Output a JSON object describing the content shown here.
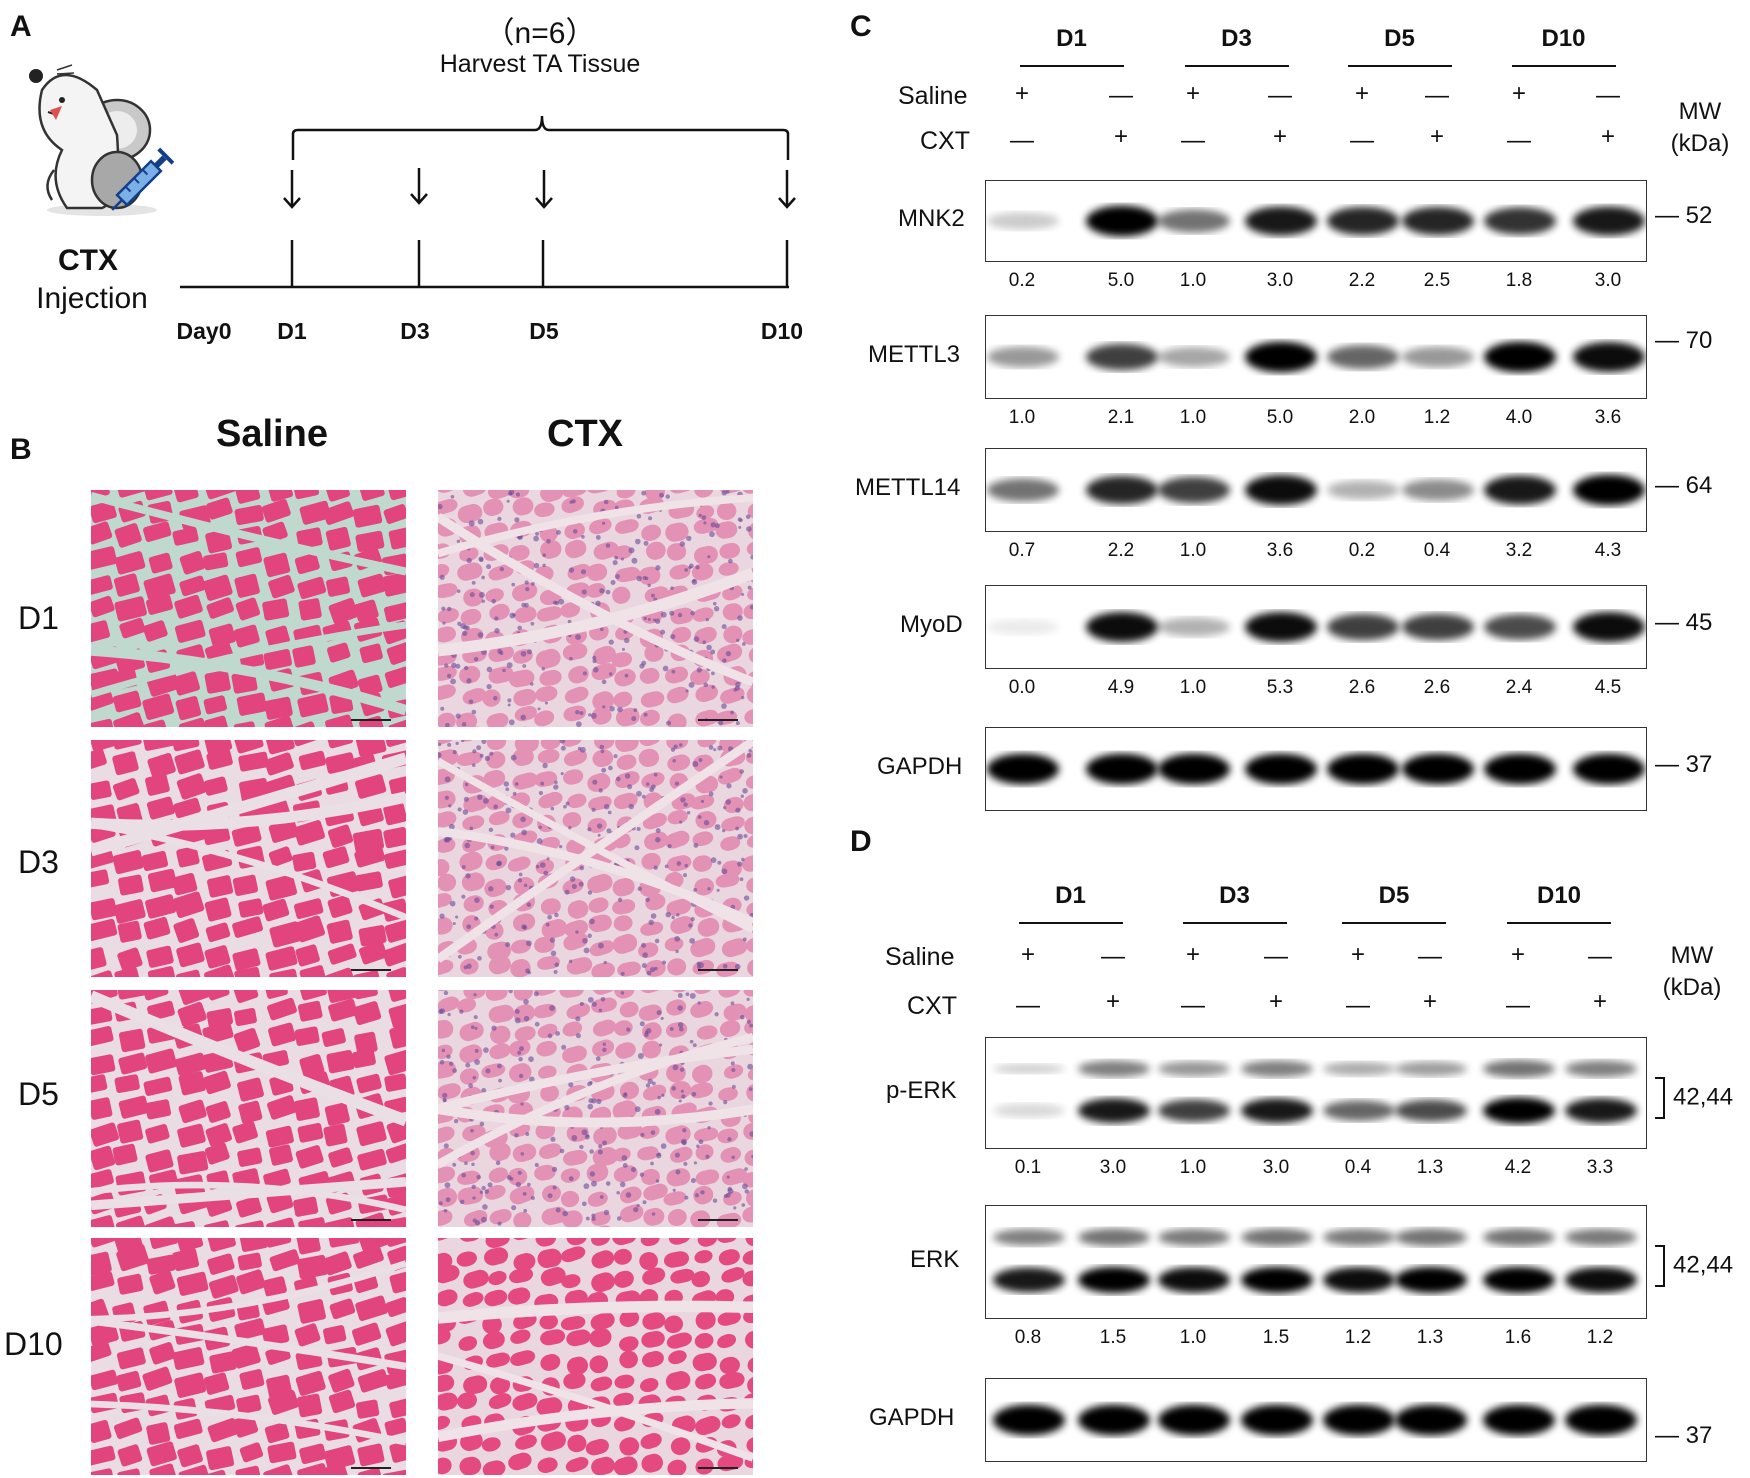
{
  "panelA": {
    "label": "A",
    "n_text": "（n=6）",
    "harvest_text": "Harvest TA Tissue",
    "ctx_text": "CTX",
    "injection_text": "Injection",
    "timeline_labels": [
      "Day0",
      "D1",
      "D3",
      "D5",
      "D10"
    ]
  },
  "panelB": {
    "label": "B",
    "col_headers": [
      "Saline",
      "CTX"
    ],
    "row_labels": [
      "D1",
      "D3",
      "D5",
      "D10"
    ]
  },
  "panelC": {
    "label": "C",
    "days": [
      "D1",
      "D3",
      "D5",
      "D10"
    ],
    "row_saline_label": "Saline",
    "row_cxt_label": "CXT",
    "saline_marks": [
      "+",
      "—",
      "+",
      "—",
      "+",
      "—",
      "+",
      "—"
    ],
    "cxt_marks": [
      "—",
      "+",
      "—",
      "+",
      "—",
      "+",
      "—",
      "+"
    ],
    "mw_label": "MW",
    "kda_label": "(kDa)",
    "blots": [
      {
        "name": "MNK2",
        "mw": "— 52",
        "values": [
          "0.2",
          "5.0",
          "1.0",
          "3.0",
          "2.2",
          "2.5",
          "1.8",
          "3.0"
        ],
        "intensity": [
          0.2,
          1.0,
          0.55,
          0.9,
          0.85,
          0.85,
          0.8,
          0.9
        ]
      },
      {
        "name": "METTL3",
        "mw": "— 70",
        "values": [
          "1.0",
          "2.1",
          "1.0",
          "5.0",
          "2.0",
          "1.2",
          "4.0",
          "3.6"
        ],
        "intensity": [
          0.4,
          0.75,
          0.35,
          1.0,
          0.6,
          0.4,
          1.0,
          0.95
        ]
      },
      {
        "name": "METTL14",
        "mw": "— 64",
        "values": [
          "0.7",
          "2.2",
          "1.0",
          "3.6",
          "0.2",
          "0.4",
          "3.2",
          "4.3"
        ],
        "intensity": [
          0.55,
          0.85,
          0.75,
          0.95,
          0.3,
          0.45,
          0.9,
          1.0
        ]
      },
      {
        "name": "MyoD",
        "mw": "— 45",
        "values": [
          "0.0",
          "4.9",
          "1.0",
          "5.3",
          "2.6",
          "2.6",
          "2.4",
          "4.5"
        ],
        "intensity": [
          0.08,
          0.95,
          0.3,
          0.95,
          0.75,
          0.75,
          0.7,
          0.95
        ]
      },
      {
        "name": "GAPDH",
        "mw": "— 37",
        "values": [],
        "intensity": [
          1,
          1,
          1,
          1,
          1,
          1,
          1,
          1
        ]
      }
    ]
  },
  "panelD": {
    "label": "D",
    "days": [
      "D1",
      "D3",
      "D5",
      "D10"
    ],
    "row_saline_label": "Saline",
    "row_cxt_label": "CXT",
    "saline_marks": [
      "+",
      "—",
      "+",
      "—",
      "+",
      "—",
      "+",
      "—"
    ],
    "cxt_marks": [
      "—",
      "+",
      "—",
      "+",
      "—",
      "+",
      "—",
      "+"
    ],
    "mw_label": "MW",
    "kda_label": "(kDa)",
    "blots": [
      {
        "name": "p-ERK",
        "mw": "42,44",
        "values": [
          "0.1",
          "3.0",
          "1.0",
          "3.0",
          "0.4",
          "1.3",
          "4.2",
          "3.3"
        ],
        "intensity": [
          0.15,
          0.9,
          0.75,
          0.9,
          0.6,
          0.7,
          1.0,
          0.9
        ]
      },
      {
        "name": "ERK",
        "mw": "42,44",
        "values": [
          "0.8",
          "1.5",
          "1.0",
          "1.5",
          "1.2",
          "1.3",
          "1.6",
          "1.2"
        ],
        "intensity": [
          0.9,
          1.0,
          0.95,
          1.0,
          0.95,
          1.0,
          1.0,
          0.95
        ]
      },
      {
        "name": "GAPDH",
        "mw": "— 37",
        "values": [],
        "intensity": [
          1,
          1,
          1,
          1,
          1,
          1,
          1,
          1
        ]
      }
    ]
  }
}
